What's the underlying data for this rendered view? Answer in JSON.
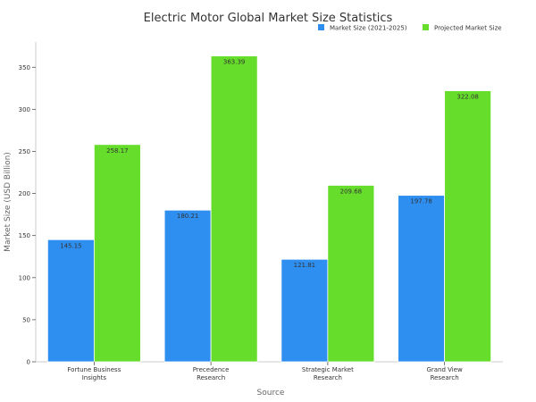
{
  "chart_data": {
    "type": "bar",
    "title": "Electric Motor Global Market Size Statistics",
    "xlabel": "Source",
    "ylabel": "Market Size (USD Billion)",
    "categories": [
      "Fortune Business Insights",
      "Precedence Research",
      "Strategic Market Research",
      "Grand View Research"
    ],
    "category_lines": [
      [
        "Fortune Business",
        "Insights"
      ],
      [
        "Precedence",
        "Research"
      ],
      [
        "Strategic Market",
        "Research"
      ],
      [
        "Grand View",
        "Research"
      ]
    ],
    "series": [
      {
        "name": "Market Size (2021-2025)",
        "color": "#2E8FF0",
        "values": [
          145.15,
          180.21,
          121.81,
          197.78
        ],
        "labels": [
          "145.15",
          "180.21",
          "121.81",
          "197.78"
        ]
      },
      {
        "name": "Projected Market Size",
        "color": "#66DD2A",
        "values": [
          258.17,
          363.39,
          209.68,
          322.08
        ],
        "labels": [
          "258.17",
          "363.39",
          "209.68",
          "322.08"
        ]
      }
    ],
    "ylim": [
      0,
      380
    ],
    "yticks": [
      0,
      50,
      100,
      150,
      200,
      250,
      300,
      350
    ],
    "grid": false,
    "legend": "top-right"
  }
}
